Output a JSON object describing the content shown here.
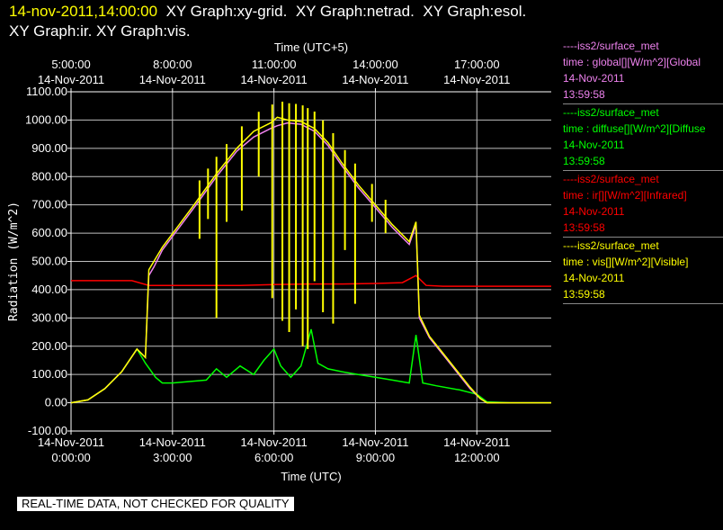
{
  "header": {
    "timestamp": "14-nov-2011,14:00:00",
    "graphs": [
      "XY Graph:xy-grid.",
      "XY Graph:netrad.",
      "XY Graph:esol.",
      "XY Graph:ir.",
      "XY Graph:vis."
    ]
  },
  "legend": [
    {
      "source": "----iss2/surface_met",
      "variable": "time : global[][W/m^2][Global",
      "date": "14-Nov-2011",
      "time": "13:59:58",
      "color": "#ee82ee"
    },
    {
      "source": "----iss2/surface_met",
      "variable": "time : diffuse[][W/m^2][Diffuse",
      "date": "14-Nov-2011",
      "time": "13:59:58",
      "color": "#00ff00"
    },
    {
      "source": "----iss2/surface_met",
      "variable": "time : ir[][W/m^2][Infrared]",
      "date": "14-Nov-2011",
      "time": "13:59:58",
      "color": "#ff0000"
    },
    {
      "source": "----iss2/surface_met",
      "variable": "time : vis[][W/m^2][Visible]",
      "date": "14-Nov-2011",
      "time": "13:59:58",
      "color": "#ffff00"
    }
  ],
  "footer": {
    "quality_note": "REAL-TIME DATA, NOT CHECKED FOR QUALITY"
  },
  "chart_data": {
    "type": "line",
    "top_axis_label": "Time (UTC+5)",
    "top_ticks": [
      {
        "x": 0,
        "line1": "5:00:00",
        "line2": "14-Nov-2011"
      },
      {
        "x": 3,
        "line1": "8:00:00",
        "line2": "14-Nov-2011"
      },
      {
        "x": 6,
        "line1": "11:00:00",
        "line2": "14-Nov-2011"
      },
      {
        "x": 9,
        "line1": "14:00:00",
        "line2": "14-Nov-2011"
      },
      {
        "x": 12,
        "line1": "17:00:00",
        "line2": "14-Nov-2011"
      }
    ],
    "xlabel": "Time (UTC)",
    "x_ticks": [
      {
        "x": 0,
        "line1": "14-Nov-2011",
        "line2": "0:00:00"
      },
      {
        "x": 3,
        "line1": "14-Nov-2011",
        "line2": "3:00:00"
      },
      {
        "x": 6,
        "line1": "14-Nov-2011",
        "line2": "6:00:00"
      },
      {
        "x": 9,
        "line1": "14-Nov-2011",
        "line2": "9:00:00"
      },
      {
        "x": 12,
        "line1": "14-Nov-2011",
        "line2": "12:00:00"
      }
    ],
    "xlim": [
      0,
      14.2
    ],
    "ylabel": "Radiation (W/m^2)",
    "ylim": [
      -100,
      1100
    ],
    "y_ticks": [
      "-100.00",
      "0.00",
      "100.00",
      "200.00",
      "300.00",
      "400.00",
      "500.00",
      "600.00",
      "700.00",
      "800.00",
      "900.00",
      "1000.00",
      "1100.00"
    ],
    "grid": true,
    "series": [
      {
        "name": "global",
        "color": "#ee82ee",
        "x": [
          0,
          0.5,
          1.0,
          1.5,
          1.95,
          2.2,
          2.3,
          2.45,
          2.7,
          3.2,
          3.7,
          4.3,
          4.9,
          5.4,
          5.9,
          6.1,
          6.4,
          6.8,
          7.2,
          7.6,
          8.0,
          8.5,
          9.0,
          9.5,
          10.0,
          10.2,
          10.3,
          10.6,
          11.0,
          11.4,
          11.8,
          12.1,
          12.3,
          13.0,
          14.2
        ],
        "y": [
          0,
          10,
          50,
          110,
          190,
          160,
          450,
          480,
          540,
          620,
          700,
          800,
          890,
          940,
          970,
          980,
          990,
          985,
          960,
          910,
          840,
          760,
          690,
          620,
          560,
          630,
          300,
          230,
          170,
          110,
          50,
          15,
          0,
          0,
          0
        ]
      },
      {
        "name": "diffuse",
        "color": "#00ff00",
        "x": [
          0,
          0.5,
          1.0,
          1.5,
          1.95,
          2.2,
          2.5,
          2.7,
          3.0,
          3.5,
          4.0,
          4.3,
          4.6,
          5.0,
          5.4,
          5.7,
          6.0,
          6.2,
          6.5,
          6.8,
          7.1,
          7.3,
          7.6,
          8.0,
          8.5,
          9.0,
          9.5,
          10.0,
          10.2,
          10.4,
          10.8,
          11.5,
          12.0,
          12.3,
          13.0,
          14.2
        ],
        "y": [
          0,
          10,
          50,
          110,
          190,
          140,
          90,
          70,
          70,
          75,
          80,
          120,
          90,
          130,
          100,
          150,
          190,
          130,
          90,
          130,
          260,
          140,
          120,
          110,
          100,
          90,
          80,
          70,
          240,
          70,
          60,
          45,
          30,
          3,
          0,
          0
        ]
      },
      {
        "name": "ir",
        "color": "#ff0000",
        "x": [
          0,
          1.0,
          1.8,
          2.3,
          3.0,
          4.0,
          5.0,
          6.0,
          7.0,
          8.0,
          9.0,
          9.8,
          10.2,
          10.5,
          11.0,
          12.0,
          13.0,
          14.2
        ],
        "y": [
          432,
          432,
          432,
          415,
          415,
          415,
          415,
          418,
          420,
          420,
          422,
          425,
          450,
          415,
          412,
          412,
          412,
          412
        ]
      },
      {
        "name": "vis",
        "color": "#ffff00",
        "x": [
          0,
          0.5,
          1.0,
          1.5,
          1.95,
          2.2,
          2.3,
          2.45,
          2.7,
          3.2,
          3.7,
          4.3,
          4.9,
          5.4,
          5.9,
          6.1,
          6.4,
          6.8,
          7.2,
          7.6,
          8.0,
          8.5,
          9.0,
          9.5,
          10.0,
          10.2,
          10.3,
          10.6,
          11.0,
          11.4,
          11.8,
          12.1,
          12.3,
          13.0,
          14.2
        ],
        "y": [
          0,
          10,
          50,
          110,
          190,
          160,
          470,
          500,
          550,
          630,
          710,
          810,
          900,
          960,
          990,
          1010,
          1000,
          995,
          970,
          920,
          850,
          770,
          700,
          630,
          570,
          640,
          310,
          235,
          175,
          115,
          55,
          15,
          0,
          0,
          0
        ]
      }
    ],
    "spikes": {
      "color": "#ffff00",
      "x": [
        3.8,
        4.05,
        4.3,
        4.6,
        5.05,
        5.55,
        5.95,
        6.25,
        6.45,
        6.65,
        6.85,
        7.0,
        7.2,
        7.45,
        7.75,
        8.1,
        8.4,
        8.9,
        9.3
      ],
      "y": [
        580,
        650,
        300,
        640,
        680,
        800,
        370,
        290,
        250,
        330,
        200,
        190,
        430,
        320,
        280,
        540,
        350,
        640,
        600
      ]
    }
  }
}
